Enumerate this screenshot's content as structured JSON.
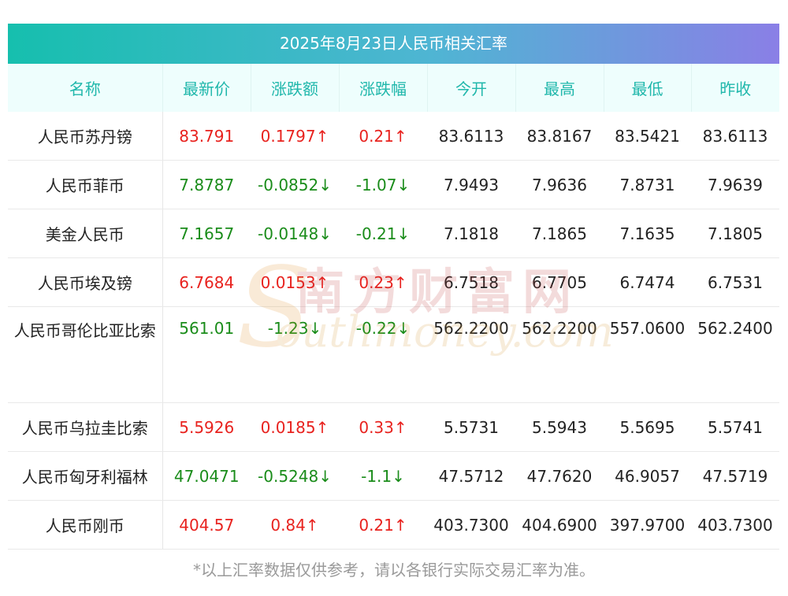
{
  "title": "2025年8月23日人民币相关汇率",
  "headers": [
    "名称",
    "最新价",
    "涨跌额",
    "涨跌幅",
    "今开",
    "最高",
    "最低",
    "昨收"
  ],
  "rows": [
    {
      "name": "人民币苏丹镑",
      "latest": "83.791",
      "change": "0.1797↑",
      "pct": "0.21↑",
      "open": "83.6113",
      "high": "83.8167",
      "low": "83.5421",
      "prev": "83.6113",
      "dir": "up"
    },
    {
      "name": "人民币菲币",
      "latest": "7.8787",
      "change": "-0.0852↓",
      "pct": "-1.07↓",
      "open": "7.9493",
      "high": "7.9636",
      "low": "7.8731",
      "prev": "7.9639",
      "dir": "down"
    },
    {
      "name": "美金人民币",
      "latest": "7.1657",
      "change": "-0.0148↓",
      "pct": "-0.21↓",
      "open": "7.1818",
      "high": "7.1865",
      "low": "7.1635",
      "prev": "7.1805",
      "dir": "down"
    },
    {
      "name": "人民币埃及镑",
      "latest": "6.7684",
      "change": "0.0153↑",
      "pct": "0.23↑",
      "open": "6.7518",
      "high": "6.7705",
      "low": "6.7474",
      "prev": "6.7531",
      "dir": "up"
    },
    {
      "name": "人民币哥伦比亚比索",
      "latest": "561.01",
      "change": "-1.23↓",
      "pct": "-0.22↓",
      "open": "562.2200",
      "high": "562.2200",
      "low": "557.0600",
      "prev": "562.2400",
      "dir": "down"
    },
    {
      "name": "人民币乌拉圭比索",
      "latest": "5.5926",
      "change": "0.0185↑",
      "pct": "0.33↑",
      "open": "5.5731",
      "high": "5.5943",
      "low": "5.5695",
      "prev": "5.5741",
      "dir": "up"
    },
    {
      "name": "人民币匈牙利福林",
      "latest": "47.0471",
      "change": "-0.5248↓",
      "pct": "-1.1↓",
      "open": "47.5712",
      "high": "47.7620",
      "low": "46.9057",
      "prev": "47.5719",
      "dir": "down"
    },
    {
      "name": "人民币刚币",
      "latest": "404.57",
      "change": "0.84↑",
      "pct": "0.21↑",
      "open": "403.7300",
      "high": "404.6900",
      "low": "397.9700",
      "prev": "403.7300",
      "dir": "up"
    }
  ],
  "footnote": "*以上汇率数据仅供参考，请以各银行实际交易汇率为准。",
  "watermark": {
    "cn": "南方财富网",
    "en": "outhmoney.com",
    "s": "S"
  },
  "colors": {
    "up": "#e8221e",
    "down": "#1a8c1a",
    "header_text": "#20b7ab"
  }
}
